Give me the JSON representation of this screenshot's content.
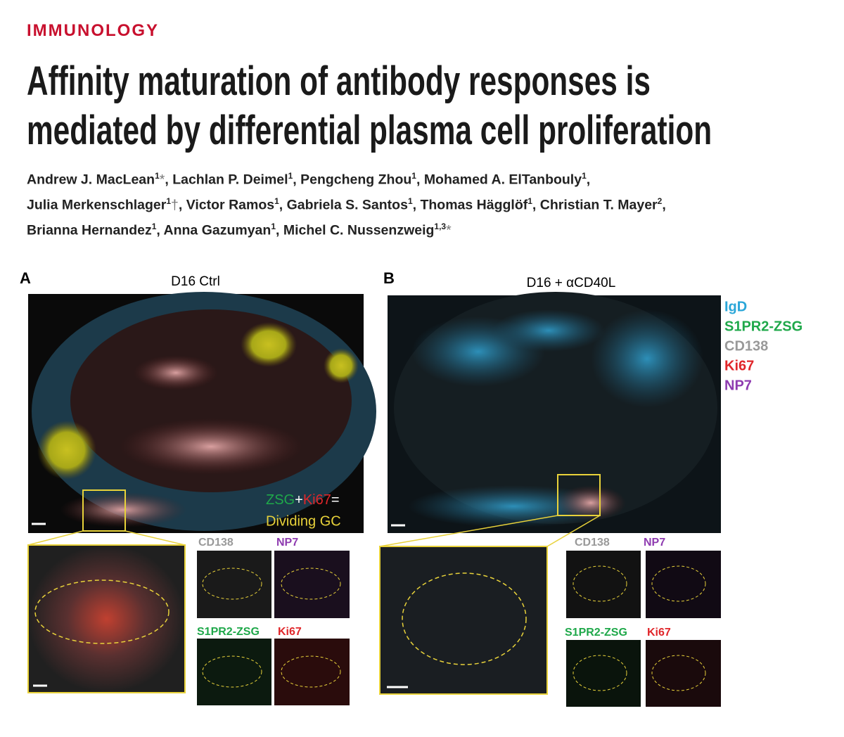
{
  "section": "IMMUNOLOGY",
  "title_lines": [
    "Affinity maturation of antibody responses is",
    "mediated by differential plasma cell proliferation"
  ],
  "authors": [
    [
      {
        "name": "Andrew J. MacLean",
        "affiliation": "1",
        "mark": "*",
        "separator": ","
      },
      {
        "name": "Lachlan P. Deimel",
        "affiliation": "1",
        "separator": ","
      },
      {
        "name": "Pengcheng Zhou",
        "affiliation": "1",
        "separator": ","
      },
      {
        "name": "Mohamed A. ElTanbouly",
        "affiliation": "1",
        "separator": ","
      }
    ],
    [
      {
        "name": "Julia Merkenschlager",
        "affiliation": "1",
        "mark": "†",
        "separator": ","
      },
      {
        "name": "Victor Ramos",
        "affiliation": "1",
        "separator": ","
      },
      {
        "name": "Gabriela S. Santos",
        "affiliation": "1",
        "separator": ","
      },
      {
        "name": "Thomas Hägglöf",
        "affiliation": "1",
        "separator": ","
      },
      {
        "name": "Christian T. Mayer",
        "affiliation": "2",
        "separator": ","
      }
    ],
    [
      {
        "name": "Brianna Hernandez",
        "affiliation": "1",
        "separator": ","
      },
      {
        "name": "Anna Gazumyan",
        "affiliation": "1",
        "separator": ","
      },
      {
        "name": "Michel C. Nussenzweig",
        "affiliation": "1,3",
        "mark": "*"
      }
    ]
  ],
  "figure": {
    "panels": [
      {
        "label": "A",
        "title": "D16 Ctrl",
        "overlay": {
          "parts": [
            {
              "text": "ZSG",
              "color": "#1fa84a"
            },
            {
              "text": "+",
              "color": "#ffffff"
            },
            {
              "text": "Ki67",
              "color": "#e0262a"
            },
            {
              "text": "=",
              "color": "#ffffff"
            }
          ],
          "result": {
            "text": "Dividing GC",
            "color": "#e8d23a"
          }
        },
        "channels": [
          {
            "text": "CD138",
            "color": "#999999"
          },
          {
            "text": "NP7",
            "color": "#8e3bb0"
          },
          {
            "text": "S1PR2-ZSG",
            "color": "#1fa84a"
          },
          {
            "text": "Ki67",
            "color": "#e0262a"
          }
        ]
      },
      {
        "label": "B",
        "title": "D16 + αCD40L",
        "legend": [
          {
            "text": "IgD",
            "color": "#2aa6d8"
          },
          {
            "text": "S1PR2-ZSG",
            "color": "#1fa84a"
          },
          {
            "text": "CD138",
            "color": "#999999"
          },
          {
            "text": "Ki67",
            "color": "#e0262a"
          },
          {
            "text": "NP7",
            "color": "#8e3bb0"
          }
        ],
        "channels": [
          {
            "text": "CD138",
            "color": "#999999"
          },
          {
            "text": "NP7",
            "color": "#8e3bb0"
          },
          {
            "text": "S1PR2-ZSG",
            "color": "#1fa84a"
          },
          {
            "text": "Ki67",
            "color": "#e0262a"
          }
        ]
      }
    ]
  }
}
